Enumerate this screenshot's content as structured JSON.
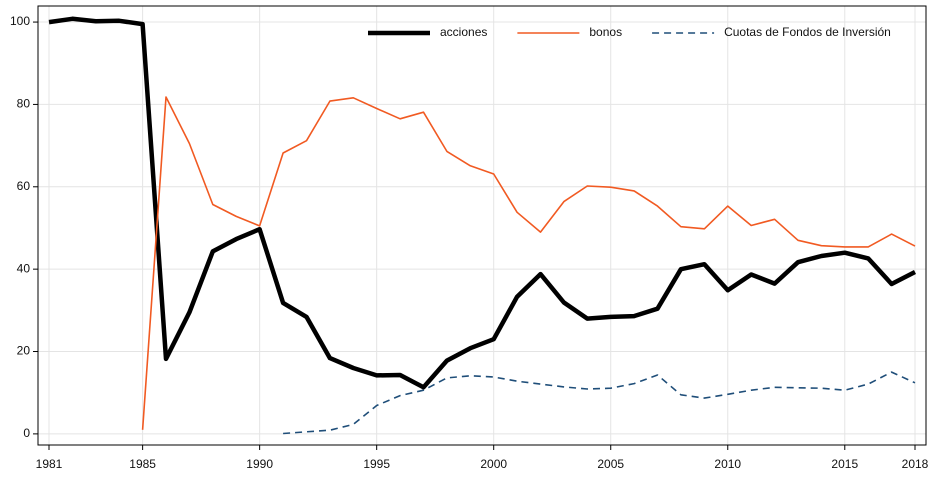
{
  "chart_data": {
    "type": "line",
    "x": [
      1981,
      1982,
      1983,
      1984,
      1985,
      1986,
      1987,
      1988,
      1989,
      1990,
      1991,
      1992,
      1993,
      1994,
      1995,
      1996,
      1997,
      1998,
      1999,
      2000,
      2001,
      2002,
      2003,
      2004,
      2005,
      2006,
      2007,
      2008,
      2009,
      2010,
      2011,
      2012,
      2013,
      2014,
      2015,
      2016,
      2017,
      2018
    ],
    "series": [
      {
        "name": "acciones",
        "color": "#000000",
        "width": 4.5,
        "style": "solid",
        "values": [
          100,
          100.8,
          100.2,
          100.3,
          99.5,
          18.2,
          29.5,
          44.3,
          47.3,
          49.7,
          31.8,
          28.4,
          18.4,
          16,
          14.2,
          14.3,
          11.3,
          17.8,
          20.8,
          23,
          33.3,
          38.8,
          31.9,
          28,
          28.4,
          28.6,
          30.4,
          40,
          41.2,
          34.9,
          38.7,
          36.5,
          41.7,
          43.2,
          44,
          42.6,
          36.4,
          39.3
        ]
      },
      {
        "name": "bonos",
        "color": "#f15a22",
        "width": 1.6,
        "style": "solid",
        "values": [
          null,
          null,
          null,
          null,
          1,
          81.8,
          70.5,
          55.7,
          52.8,
          50.5,
          68.2,
          71.2,
          80.8,
          81.6,
          79,
          76.5,
          78.1,
          68.6,
          65.1,
          63.1,
          53.8,
          49,
          56.4,
          60.2,
          59.9,
          59,
          55.3,
          50.3,
          49.8,
          55.3,
          50.6,
          52.1,
          47,
          45.7,
          45.4,
          45.4,
          48.5,
          45.6
        ]
      },
      {
        "name": "Cuotas de Fondos de Inversión",
        "color": "#1f4e79",
        "width": 1.6,
        "style": "dashed",
        "values": [
          null,
          null,
          null,
          null,
          null,
          null,
          null,
          null,
          null,
          null,
          0.1,
          0.5,
          0.9,
          2.3,
          6.9,
          9.3,
          10.6,
          13.6,
          14.1,
          13.8,
          12.8,
          12.1,
          11.4,
          10.9,
          11.1,
          12.2,
          14.3,
          9.5,
          8.7,
          9.6,
          10.6,
          11.3,
          11.2,
          11.1,
          10.6,
          12.1,
          15,
          12.4
        ]
      }
    ],
    "xlim": [
      1980.53,
      2018.47
    ],
    "xticks": [
      1981,
      1985,
      1990,
      1995,
      2000,
      2005,
      2010,
      2015,
      2018
    ],
    "ylim": [
      -2.7,
      103.9
    ],
    "yticks": [
      0,
      20,
      40,
      60,
      80,
      100
    ],
    "grid": true,
    "legend": "top"
  }
}
